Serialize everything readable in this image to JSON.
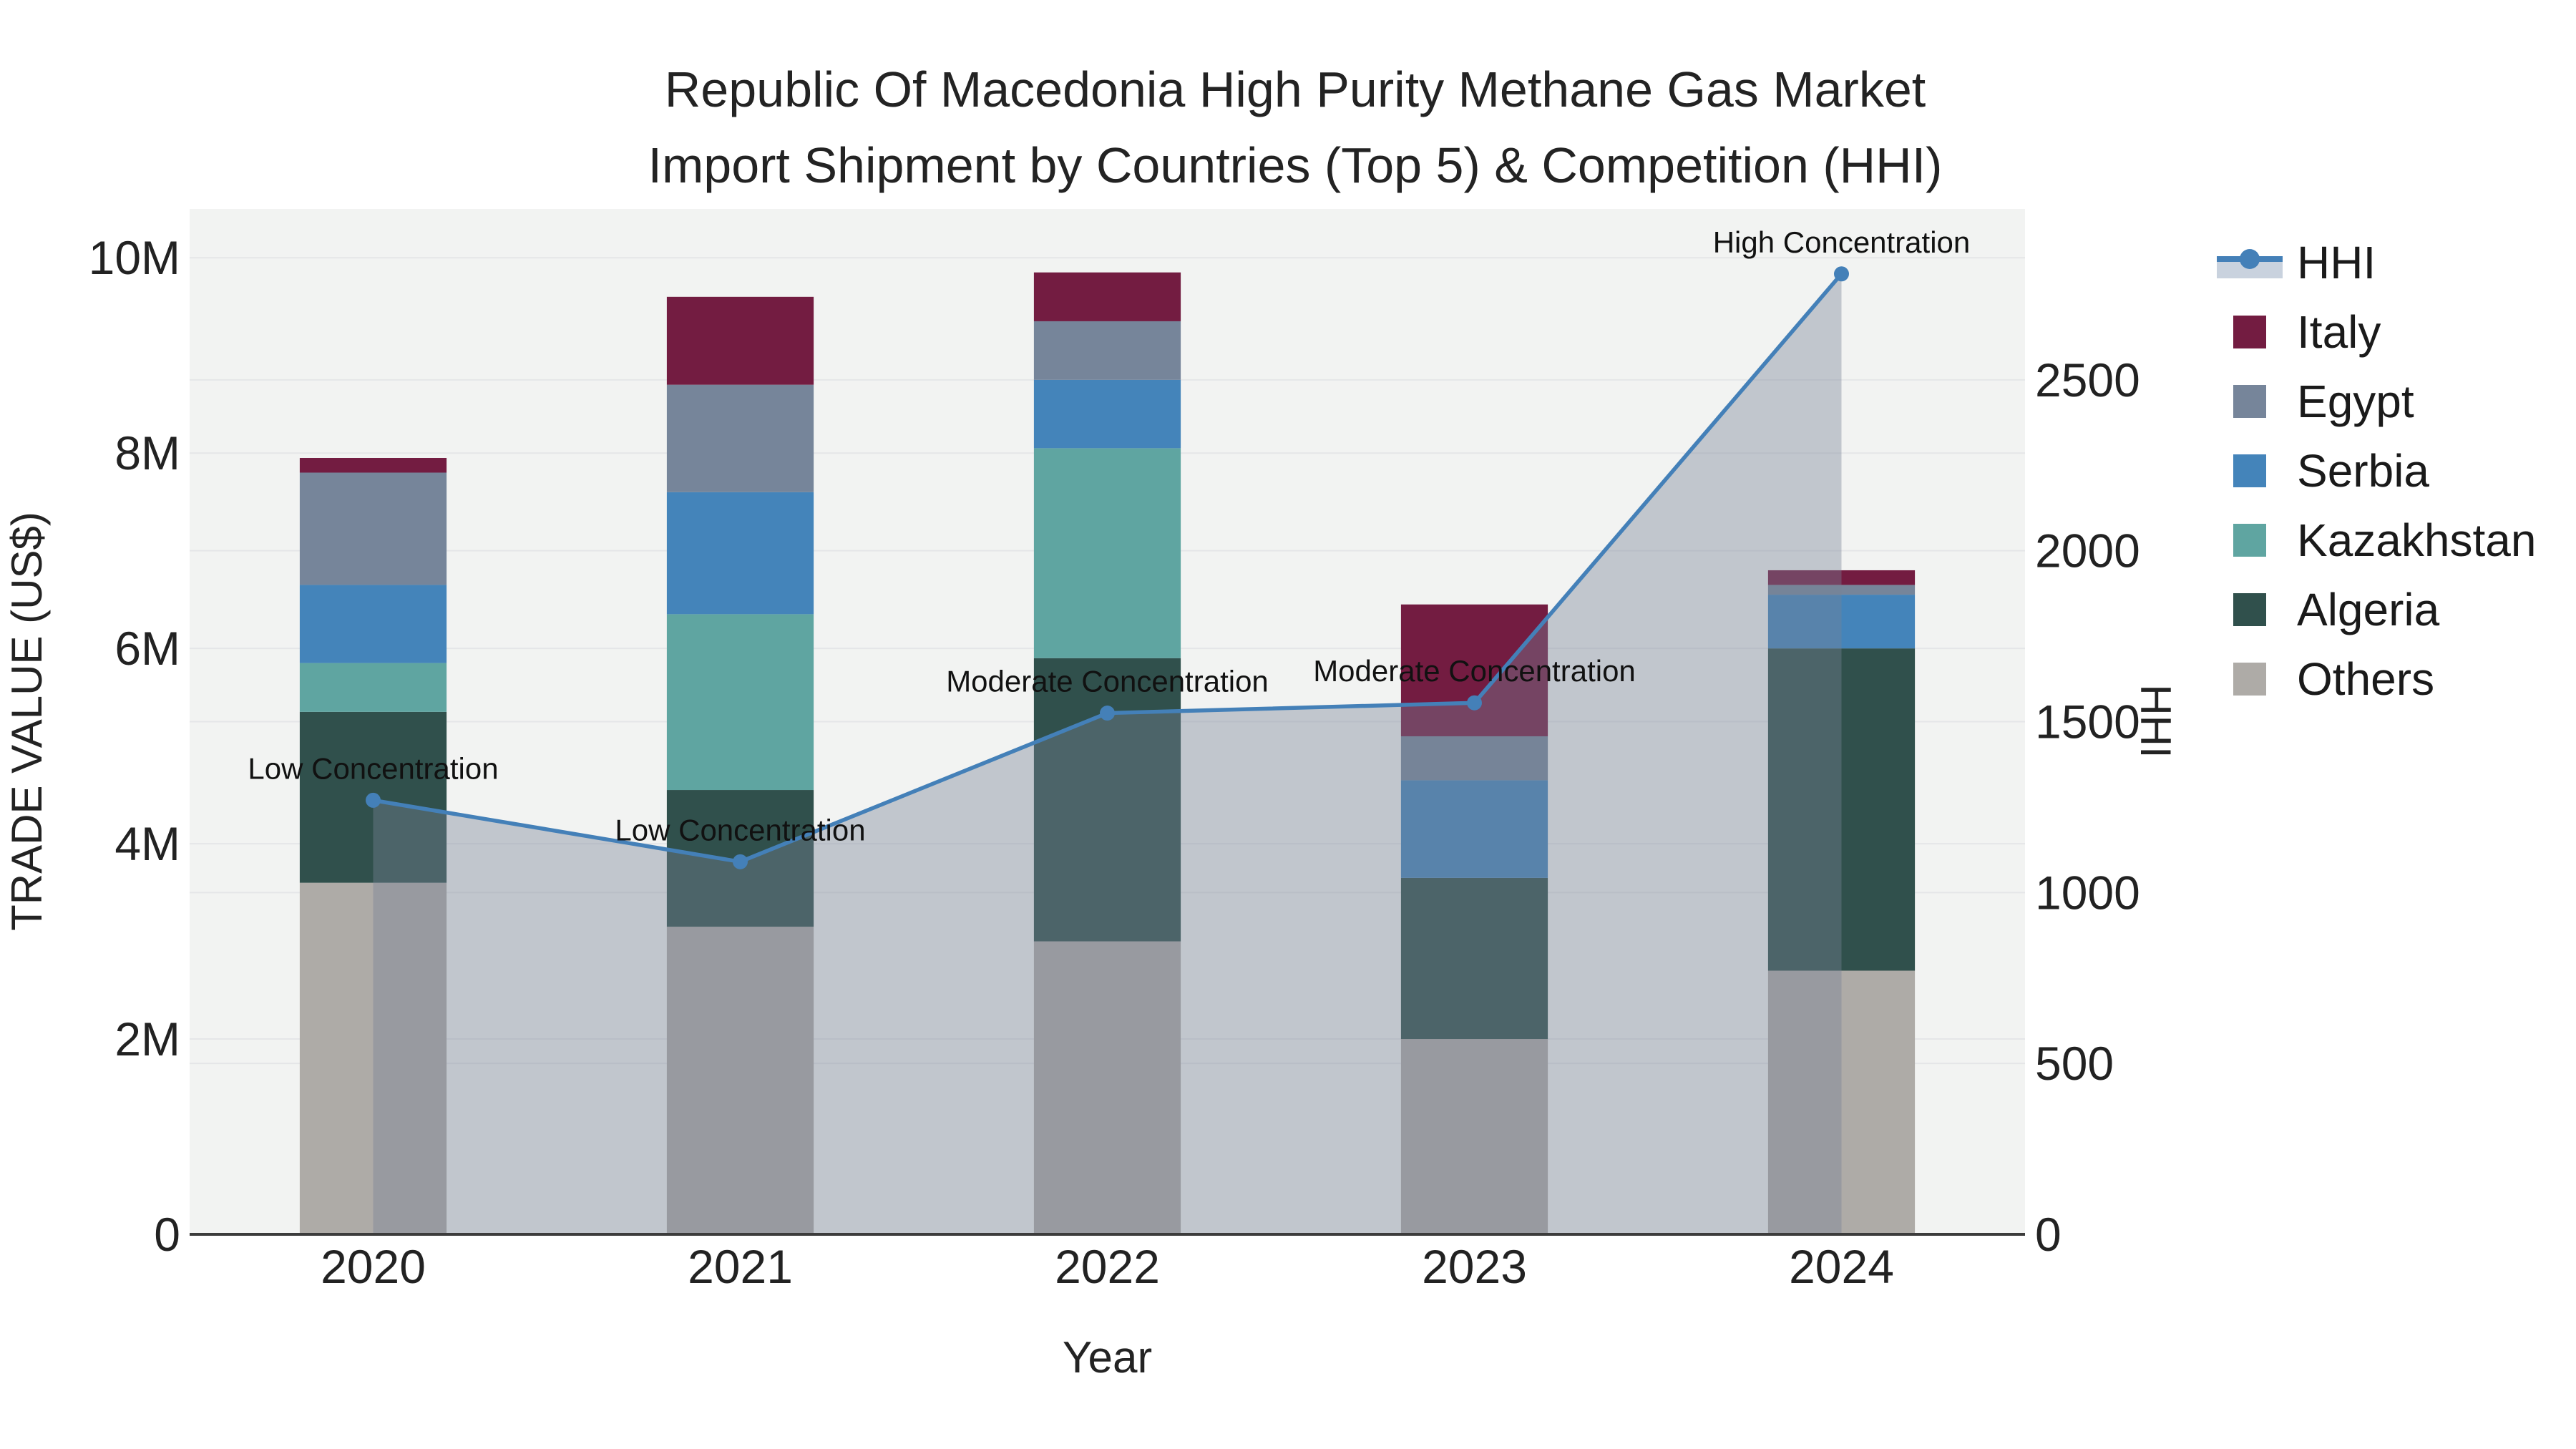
{
  "title": {
    "line1": "Republic Of Macedonia High Purity Methane Gas Market",
    "line2": "Import Shipment by Countries (Top 5) & Competition (HHI)"
  },
  "axes": {
    "x": {
      "label": "Year"
    },
    "y_left": {
      "label": "TRADE VALUE (US$)",
      "ticks": [
        "0",
        "2M",
        "4M",
        "6M",
        "8M",
        "10M"
      ],
      "tick_values": [
        0,
        2,
        4,
        6,
        8,
        10
      ]
    },
    "y_right": {
      "label": "HHI",
      "ticks": [
        "0",
        "500",
        "1000",
        "1500",
        "2000",
        "2500"
      ],
      "tick_values": [
        0,
        500,
        1000,
        1500,
        2000,
        2500
      ]
    }
  },
  "chart_data": {
    "type": "bar+line",
    "title": "Republic Of Macedonia High Purity Methane Gas Market Import Shipment by Countries (Top 5) & Competition (HHI)",
    "xlabel": "Year",
    "ylabel_left": "TRADE VALUE (US$)",
    "ylabel_right": "HHI",
    "categories": [
      "2020",
      "2021",
      "2022",
      "2023",
      "2024"
    ],
    "bar_value_unit": "millions US$",
    "ylim_left": [
      0,
      10.5
    ],
    "ylim_right": [
      0,
      3000
    ],
    "grid": true,
    "legend_position": "right",
    "series": [
      {
        "name": "Others",
        "color": "#aeaba7",
        "values": [
          3.6,
          3.15,
          3.0,
          2.0,
          2.7
        ]
      },
      {
        "name": "Algeria",
        "color": "#30504c",
        "values": [
          1.75,
          1.4,
          2.9,
          1.65,
          3.3
        ]
      },
      {
        "name": "Kazakhstan",
        "color": "#5fa5a1",
        "values": [
          0.5,
          1.8,
          2.15,
          0.0,
          0.0
        ]
      },
      {
        "name": "Serbia",
        "color": "#4484ba",
        "values": [
          0.8,
          1.25,
          0.7,
          1.0,
          0.55
        ]
      },
      {
        "name": "Egypt",
        "color": "#76859a",
        "values": [
          1.15,
          1.1,
          0.6,
          0.45,
          0.1
        ]
      },
      {
        "name": "Italy",
        "color": "#731c41",
        "values": [
          0.15,
          0.9,
          0.5,
          1.35,
          0.15
        ]
      }
    ],
    "line": {
      "name": "HHI",
      "color": "#4480b8",
      "area_fill": "rgba(119,131,149,0.4)",
      "values": [
        1270,
        1090,
        1525,
        1555,
        2810
      ]
    },
    "annotations": [
      "Low Concentration",
      "Low Concentration",
      "Moderate Concentration",
      "Moderate Concentration",
      "High Concentration"
    ]
  },
  "legend": {
    "items": [
      {
        "label": "HHI",
        "line_color": "#4480b8",
        "band_color": "#c9d2de"
      },
      {
        "label": "Italy",
        "color": "#731c41"
      },
      {
        "label": "Egypt",
        "color": "#76859a"
      },
      {
        "label": "Serbia",
        "color": "#4484ba"
      },
      {
        "label": "Kazakhstan",
        "color": "#5fa5a1"
      },
      {
        "label": "Algeria",
        "color": "#30504c"
      },
      {
        "label": "Others",
        "color": "#aeaba7"
      }
    ]
  },
  "style": {
    "plot_bg": "#f2f3f2",
    "gridline": "#e5e6e8",
    "axis_line": "#3c3c3c",
    "tick_color": "#222222",
    "annotation_color": "#111111"
  }
}
